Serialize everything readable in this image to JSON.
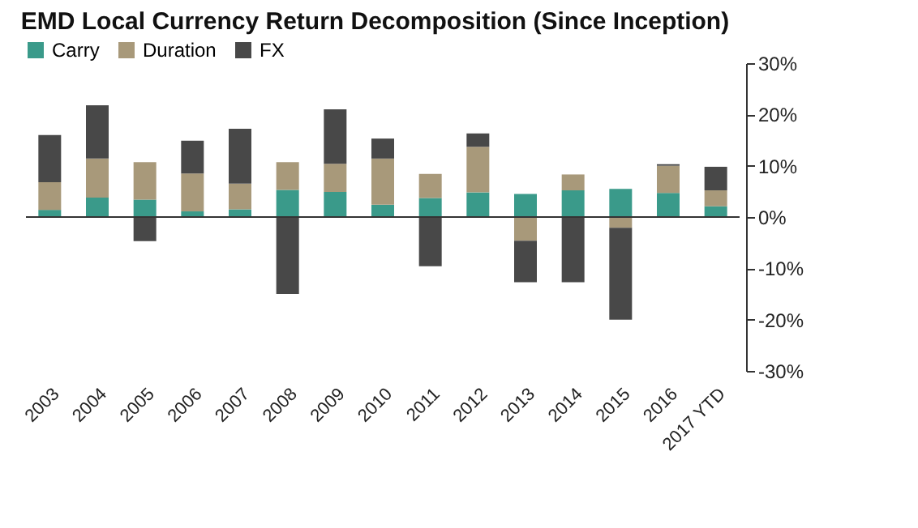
{
  "chart_data": {
    "type": "bar",
    "stacked": true,
    "title": "EMD Local Currency Return Decomposition (Since Inception)",
    "categories": [
      "2003",
      "2004",
      "2005",
      "2006",
      "2007",
      "2008",
      "2009",
      "2010",
      "2011",
      "2012",
      "2013",
      "2014",
      "2015",
      "2016",
      "2017 YTD"
    ],
    "series": [
      {
        "name": "Carry",
        "color": "#3a9a8a",
        "values": [
          1.4,
          3.8,
          3.4,
          1.1,
          1.5,
          5.3,
          4.9,
          2.4,
          3.7,
          4.8,
          4.5,
          5.2,
          5.5,
          4.7,
          2.1
        ]
      },
      {
        "name": "Duration",
        "color": "#a8997a",
        "values": [
          5.4,
          7.6,
          7.3,
          7.4,
          5.0,
          5.4,
          5.5,
          9.0,
          4.7,
          8.9,
          -4.6,
          3.1,
          -2.1,
          5.3,
          3.1
        ]
      },
      {
        "name": "FX",
        "color": "#484848",
        "values": [
          9.2,
          10.4,
          -4.7,
          6.4,
          10.7,
          -15.0,
          10.6,
          3.9,
          -9.6,
          2.6,
          -8.1,
          -12.7,
          -17.9,
          0.3,
          4.6
        ]
      }
    ],
    "ylim": [
      -30,
      30
    ],
    "yticks": [
      {
        "value": -30,
        "label": "-30%"
      },
      {
        "value": -20,
        "label": "-20%"
      },
      {
        "value": -10,
        "label": "-10%"
      },
      {
        "value": 0,
        "label": "0%"
      },
      {
        "value": 10,
        "label": "10%"
      },
      {
        "value": 20,
        "label": "20%"
      },
      {
        "value": 30,
        "label": "30%"
      }
    ],
    "ref_lines": [
      {
        "axis": "y",
        "value": 0,
        "color": "#333333"
      }
    ],
    "legend": "top",
    "grid": false
  }
}
